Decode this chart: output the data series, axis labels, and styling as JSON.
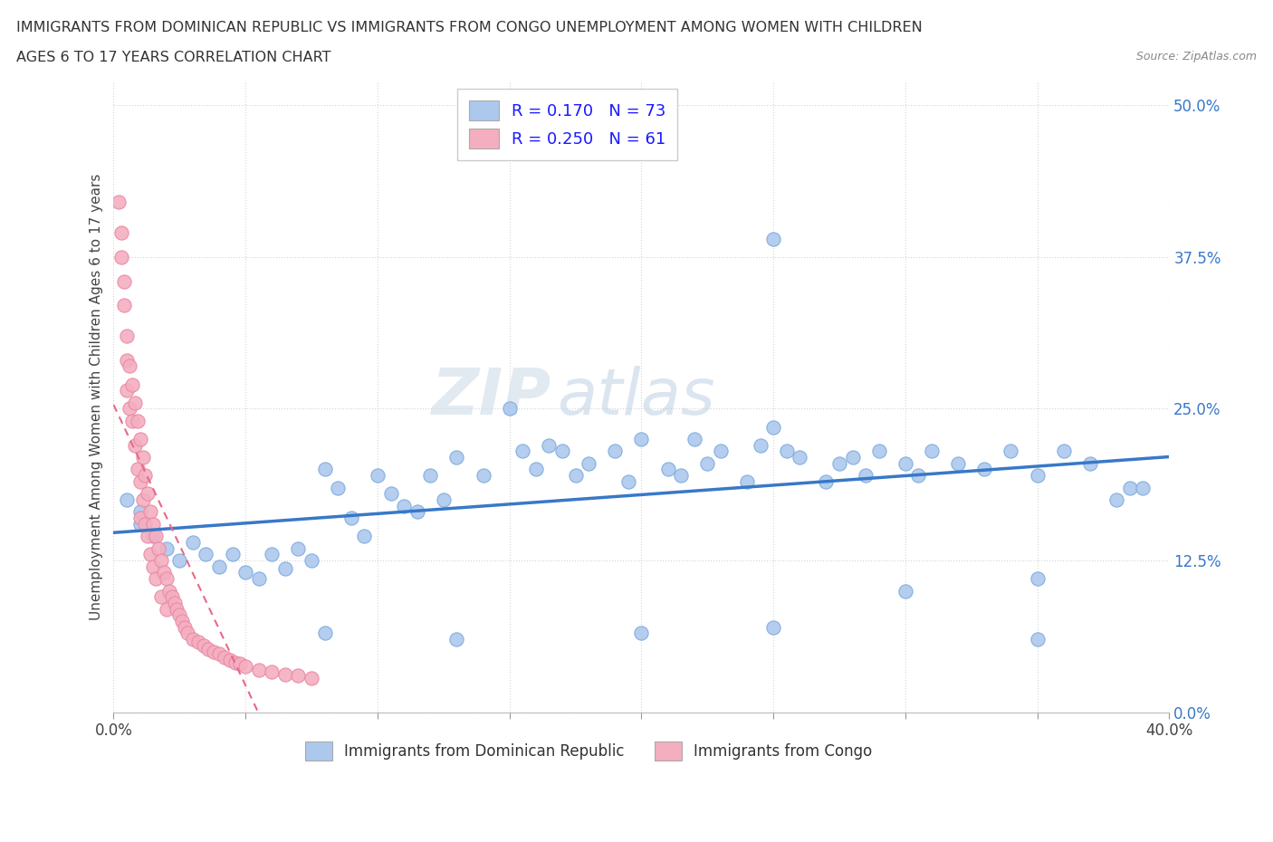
{
  "title_line1": "IMMIGRANTS FROM DOMINICAN REPUBLIC VS IMMIGRANTS FROM CONGO UNEMPLOYMENT AMONG WOMEN WITH CHILDREN",
  "title_line2": "AGES 6 TO 17 YEARS CORRELATION CHART",
  "source": "Source: ZipAtlas.com",
  "ylabel": "Unemployment Among Women with Children Ages 6 to 17 years",
  "xmin": 0.0,
  "xmax": 0.4,
  "ymin": 0.0,
  "ymax": 0.52,
  "xticks": [
    0.0,
    0.05,
    0.1,
    0.15,
    0.2,
    0.25,
    0.3,
    0.35,
    0.4
  ],
  "yticks": [
    0.0,
    0.125,
    0.25,
    0.375,
    0.5
  ],
  "legend_blue_label": "R = 0.170   N = 73",
  "legend_pink_label": "R = 0.250   N = 61",
  "legend_blue_color": "#adc8ed",
  "legend_pink_color": "#f4aec0",
  "dot_blue_color": "#adc8ed",
  "dot_pink_color": "#f4aec0",
  "dot_blue_edge": "#7aabde",
  "dot_pink_edge": "#e888a4",
  "trend_blue_color": "#3878c8",
  "trend_pink_color": "#e86888",
  "watermark_zip": "ZIP",
  "watermark_atlas": "atlas",
  "bottom_legend_blue": "Immigrants from Dominican Republic",
  "bottom_legend_pink": "Immigrants from Congo",
  "blue_x": [
    0.005,
    0.01,
    0.01,
    0.015,
    0.02,
    0.025,
    0.03,
    0.035,
    0.04,
    0.045,
    0.05,
    0.055,
    0.06,
    0.065,
    0.07,
    0.075,
    0.08,
    0.085,
    0.09,
    0.095,
    0.1,
    0.105,
    0.11,
    0.115,
    0.12,
    0.125,
    0.13,
    0.14,
    0.15,
    0.155,
    0.16,
    0.165,
    0.17,
    0.175,
    0.18,
    0.19,
    0.195,
    0.2,
    0.21,
    0.215,
    0.22,
    0.225,
    0.23,
    0.24,
    0.245,
    0.25,
    0.255,
    0.26,
    0.27,
    0.275,
    0.28,
    0.285,
    0.29,
    0.3,
    0.305,
    0.31,
    0.32,
    0.33,
    0.34,
    0.35,
    0.36,
    0.37,
    0.38,
    0.385,
    0.39,
    0.08,
    0.13,
    0.2,
    0.25,
    0.3,
    0.35,
    0.25,
    0.35
  ],
  "blue_y": [
    0.175,
    0.155,
    0.165,
    0.145,
    0.135,
    0.125,
    0.14,
    0.13,
    0.12,
    0.13,
    0.115,
    0.11,
    0.13,
    0.118,
    0.135,
    0.125,
    0.2,
    0.185,
    0.16,
    0.145,
    0.195,
    0.18,
    0.17,
    0.165,
    0.195,
    0.175,
    0.21,
    0.195,
    0.25,
    0.215,
    0.2,
    0.22,
    0.215,
    0.195,
    0.205,
    0.215,
    0.19,
    0.225,
    0.2,
    0.195,
    0.225,
    0.205,
    0.215,
    0.19,
    0.22,
    0.235,
    0.215,
    0.21,
    0.19,
    0.205,
    0.21,
    0.195,
    0.215,
    0.205,
    0.195,
    0.215,
    0.205,
    0.2,
    0.215,
    0.195,
    0.215,
    0.205,
    0.175,
    0.185,
    0.185,
    0.065,
    0.06,
    0.065,
    0.07,
    0.1,
    0.11,
    0.39,
    0.06
  ],
  "pink_x": [
    0.002,
    0.003,
    0.003,
    0.004,
    0.004,
    0.005,
    0.005,
    0.005,
    0.006,
    0.006,
    0.007,
    0.007,
    0.008,
    0.008,
    0.009,
    0.009,
    0.01,
    0.01,
    0.01,
    0.011,
    0.011,
    0.012,
    0.012,
    0.013,
    0.013,
    0.014,
    0.014,
    0.015,
    0.015,
    0.016,
    0.016,
    0.017,
    0.018,
    0.018,
    0.019,
    0.02,
    0.02,
    0.021,
    0.022,
    0.023,
    0.024,
    0.025,
    0.026,
    0.027,
    0.028,
    0.03,
    0.032,
    0.034,
    0.036,
    0.038,
    0.04,
    0.042,
    0.044,
    0.046,
    0.048,
    0.05,
    0.055,
    0.06,
    0.065,
    0.07,
    0.075
  ],
  "pink_y": [
    0.42,
    0.395,
    0.375,
    0.355,
    0.335,
    0.31,
    0.29,
    0.265,
    0.285,
    0.25,
    0.27,
    0.24,
    0.255,
    0.22,
    0.24,
    0.2,
    0.225,
    0.19,
    0.16,
    0.21,
    0.175,
    0.195,
    0.155,
    0.18,
    0.145,
    0.165,
    0.13,
    0.155,
    0.12,
    0.145,
    0.11,
    0.135,
    0.125,
    0.095,
    0.115,
    0.11,
    0.085,
    0.1,
    0.095,
    0.09,
    0.085,
    0.08,
    0.075,
    0.07,
    0.065,
    0.06,
    0.058,
    0.055,
    0.052,
    0.05,
    0.048,
    0.045,
    0.043,
    0.041,
    0.04,
    0.038,
    0.035,
    0.033,
    0.031,
    0.03,
    0.028
  ]
}
